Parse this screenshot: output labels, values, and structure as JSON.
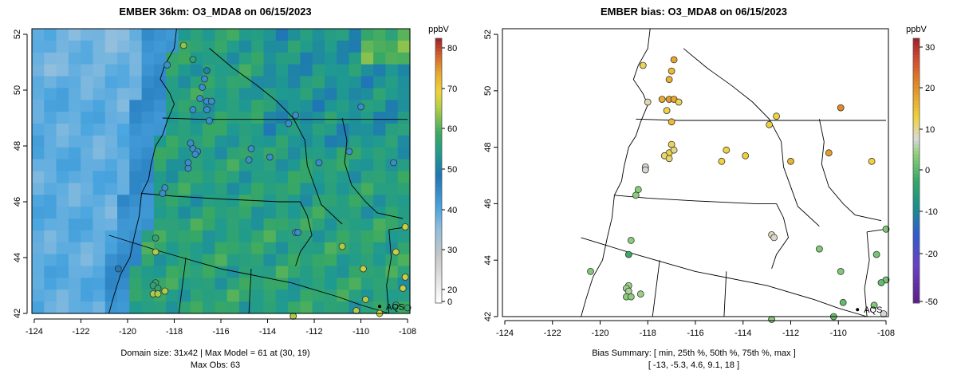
{
  "panels": {
    "left": {
      "title": "EMBER 36km: O3_MDA8 on 06/15/2023",
      "footer_line1": "Domain size: 31x42 | Max Model = 61 at (30, 19)",
      "footer_line2": "Max Obs: 63"
    },
    "right": {
      "title": "EMBER bias: O3_MDA8 on 06/15/2023",
      "footer_line1": "Bias Summary: [ min, 25th %, 50th %, 75th %, max ]",
      "footer_line2": "[ -13,   -5.3,   4.6,   9.1,   18 ]"
    }
  },
  "site_label": "AQS",
  "chart_data": [
    {
      "type": "heatmap",
      "panel": "left",
      "title": "EMBER 36km: O3_MDA8 on 06/15/2023",
      "x_ticks": [
        "-124",
        "-122",
        "-120",
        "-118",
        "-116",
        "-114",
        "-112",
        "-110",
        "-108"
      ],
      "y_ticks": [
        "42",
        "44",
        "46",
        "48",
        "50",
        "52"
      ],
      "xlim": [
        -124.1,
        -107.9
      ],
      "ylim": [
        42,
        52.2
      ],
      "grid": "model grid ocean ~25-32 ppbV, land ~44-55 ppbV, max 61",
      "colorbar": {
        "unit": "ppbV",
        "ticks": [
          "0",
          "20",
          "30",
          "40",
          "50",
          "60",
          "70",
          "80"
        ],
        "range": [
          0,
          82
        ]
      },
      "observations_ppbv": [
        {
          "lon": -118.3,
          "lat": 50.9,
          "value": 34
        },
        {
          "lon": -117.6,
          "lat": 51.6,
          "value": 58
        },
        {
          "lon": -117.2,
          "lat": 51.1,
          "value": 50
        },
        {
          "lon": -116.6,
          "lat": 50.7,
          "value": 42
        },
        {
          "lon": -116.7,
          "lat": 50.4,
          "value": 34
        },
        {
          "lon": -116.8,
          "lat": 50.1,
          "value": 34
        },
        {
          "lon": -116.9,
          "lat": 49.7,
          "value": 34
        },
        {
          "lon": -116.6,
          "lat": 49.6,
          "value": 34
        },
        {
          "lon": -116.4,
          "lat": 49.6,
          "value": 34
        },
        {
          "lon": -116.6,
          "lat": 49.3,
          "value": 34
        },
        {
          "lon": -116.5,
          "lat": 48.9,
          "value": 34
        },
        {
          "lon": -117.2,
          "lat": 49.3,
          "value": 34
        },
        {
          "lon": -117.3,
          "lat": 48.1,
          "value": 34
        },
        {
          "lon": -117.2,
          "lat": 47.9,
          "value": 34
        },
        {
          "lon": -117.0,
          "lat": 47.8,
          "value": 34
        },
        {
          "lon": -117.1,
          "lat": 47.7,
          "value": 34
        },
        {
          "lon": -117.4,
          "lat": 47.2,
          "value": 34
        },
        {
          "lon": -117.4,
          "lat": 47.4,
          "value": 34
        },
        {
          "lon": -118.4,
          "lat": 46.5,
          "value": 34
        },
        {
          "lon": -118.5,
          "lat": 46.3,
          "value": 34
        },
        {
          "lon": -114.7,
          "lat": 47.9,
          "value": 34
        },
        {
          "lon": -114.8,
          "lat": 47.5,
          "value": 34
        },
        {
          "lon": -113.9,
          "lat": 47.6,
          "value": 34
        },
        {
          "lon": -113.1,
          "lat": 48.8,
          "value": 34
        },
        {
          "lon": -112.8,
          "lat": 49.1,
          "value": 34
        },
        {
          "lon": -111.8,
          "lat": 47.4,
          "value": 34
        },
        {
          "lon": -110.0,
          "lat": 49.4,
          "value": 34
        },
        {
          "lon": -110.5,
          "lat": 47.8,
          "value": 34
        },
        {
          "lon": -108.6,
          "lat": 47.4,
          "value": 34
        },
        {
          "lon": -112.8,
          "lat": 44.9,
          "value": 34
        },
        {
          "lon": -112.7,
          "lat": 44.9,
          "value": 34
        },
        {
          "lon": -110.8,
          "lat": 44.4,
          "value": 60
        },
        {
          "lon": -109.9,
          "lat": 43.6,
          "value": 62
        },
        {
          "lon": -108.5,
          "lat": 44.2,
          "value": 62
        },
        {
          "lon": -108.1,
          "lat": 45.1,
          "value": 62
        },
        {
          "lon": -108.1,
          "lat": 43.3,
          "value": 62
        },
        {
          "lon": -108.2,
          "lat": 42.9,
          "value": 62
        },
        {
          "lon": -109.8,
          "lat": 42.5,
          "value": 60
        },
        {
          "lon": -110.2,
          "lat": 42.1,
          "value": 60
        },
        {
          "lon": -112.9,
          "lat": 41.9,
          "value": 60
        },
        {
          "lon": -109.2,
          "lat": 42.0,
          "value": 63
        },
        {
          "lon": -108.5,
          "lat": 42.3,
          "value": 50
        },
        {
          "lon": -108.0,
          "lat": 42.2,
          "value": 50
        },
        {
          "lon": -118.8,
          "lat": 44.7,
          "value": 50
        },
        {
          "lon": -118.8,
          "lat": 44.2,
          "value": 60
        },
        {
          "lon": -120.4,
          "lat": 43.6,
          "value": 40
        },
        {
          "lon": -118.8,
          "lat": 43.1,
          "value": 50
        },
        {
          "lon": -118.9,
          "lat": 43.0,
          "value": 50
        },
        {
          "lon": -118.7,
          "lat": 42.9,
          "value": 50
        },
        {
          "lon": -118.9,
          "lat": 42.7,
          "value": 60
        },
        {
          "lon": -118.7,
          "lat": 42.7,
          "value": 60
        },
        {
          "lon": -118.4,
          "lat": 42.8,
          "value": 60
        }
      ]
    },
    {
      "type": "scatter",
      "panel": "right",
      "title": "EMBER bias: O3_MDA8 on 06/15/2023",
      "x_ticks": [
        "-124",
        "-122",
        "-120",
        "-118",
        "-116",
        "-114",
        "-112",
        "-110",
        "-108"
      ],
      "y_ticks": [
        "42",
        "44",
        "46",
        "48",
        "50",
        "52"
      ],
      "xlim": [
        -124.1,
        -107.9
      ],
      "ylim": [
        42,
        52.2
      ],
      "colorbar": {
        "unit": "ppbV",
        "ticks": [
          "-50",
          "-20",
          "-10",
          "0",
          "10",
          "20",
          "30"
        ],
        "range": [
          -53,
          33
        ]
      },
      "summary": {
        "min": -13,
        "p25": -5.3,
        "p50": 4.6,
        "p75": 9.1,
        "max": 18
      },
      "bias_ppbv": [
        {
          "lon": -118.2,
          "lat": 50.9,
          "value": 6
        },
        {
          "lon": -116.9,
          "lat": 51.1,
          "value": 14
        },
        {
          "lon": -117.0,
          "lat": 50.7,
          "value": 11
        },
        {
          "lon": -117.1,
          "lat": 50.4,
          "value": 12
        },
        {
          "lon": -117.1,
          "lat": 49.7,
          "value": 15
        },
        {
          "lon": -116.9,
          "lat": 49.7,
          "value": 14
        },
        {
          "lon": -116.7,
          "lat": 49.6,
          "value": 6
        },
        {
          "lon": -117.4,
          "lat": 49.7,
          "value": 13
        },
        {
          "lon": -118.0,
          "lat": 49.6,
          "value": 2
        },
        {
          "lon": -117.2,
          "lat": 49.3,
          "value": 7
        },
        {
          "lon": -117.0,
          "lat": 48.9,
          "value": 11
        },
        {
          "lon": -117.0,
          "lat": 48.1,
          "value": 6
        },
        {
          "lon": -117.1,
          "lat": 47.8,
          "value": 7
        },
        {
          "lon": -117.3,
          "lat": 47.7,
          "value": 5
        },
        {
          "lon": -116.9,
          "lat": 47.9,
          "value": 4
        },
        {
          "lon": -117.1,
          "lat": 47.6,
          "value": 5
        },
        {
          "lon": -118.1,
          "lat": 47.3,
          "value": 1
        },
        {
          "lon": -118.1,
          "lat": 47.2,
          "value": 0
        },
        {
          "lon": -118.4,
          "lat": 46.5,
          "value": -5
        },
        {
          "lon": -118.5,
          "lat": 46.3,
          "value": -5
        },
        {
          "lon": -114.7,
          "lat": 47.9,
          "value": 7
        },
        {
          "lon": -114.9,
          "lat": 47.5,
          "value": 7
        },
        {
          "lon": -113.9,
          "lat": 47.7,
          "value": 8
        },
        {
          "lon": -112.9,
          "lat": 48.8,
          "value": 8
        },
        {
          "lon": -112.6,
          "lat": 49.1,
          "value": 7
        },
        {
          "lon": -112.0,
          "lat": 47.5,
          "value": 12
        },
        {
          "lon": -109.9,
          "lat": 49.4,
          "value": 18
        },
        {
          "lon": -110.4,
          "lat": 47.8,
          "value": 15
        },
        {
          "lon": -108.6,
          "lat": 47.5,
          "value": 7
        },
        {
          "lon": -112.8,
          "lat": 44.9,
          "value": 2
        },
        {
          "lon": -112.7,
          "lat": 44.8,
          "value": 1
        },
        {
          "lon": -110.8,
          "lat": 44.4,
          "value": -6
        },
        {
          "lon": -109.9,
          "lat": 43.6,
          "value": -6
        },
        {
          "lon": -108.4,
          "lat": 44.2,
          "value": -7
        },
        {
          "lon": -108.0,
          "lat": 45.1,
          "value": -6
        },
        {
          "lon": -108.0,
          "lat": 43.3,
          "value": -7
        },
        {
          "lon": -108.2,
          "lat": 43.2,
          "value": -9
        },
        {
          "lon": -109.8,
          "lat": 42.5,
          "value": -9
        },
        {
          "lon": -110.2,
          "lat": 42.0,
          "value": -8
        },
        {
          "lon": -112.8,
          "lat": 41.9,
          "value": -5
        },
        {
          "lon": -108.5,
          "lat": 42.4,
          "value": -6
        },
        {
          "lon": -108.1,
          "lat": 42.1,
          "value": 0
        },
        {
          "lon": -118.7,
          "lat": 44.7,
          "value": -5
        },
        {
          "lon": -118.8,
          "lat": 44.2,
          "value": -13
        },
        {
          "lon": -120.4,
          "lat": 43.6,
          "value": -6
        },
        {
          "lon": -118.8,
          "lat": 43.1,
          "value": -4
        },
        {
          "lon": -118.9,
          "lat": 43.0,
          "value": -4
        },
        {
          "lon": -118.8,
          "lat": 42.9,
          "value": -3
        },
        {
          "lon": -118.9,
          "lat": 42.7,
          "value": -5
        },
        {
          "lon": -118.7,
          "lat": 42.7,
          "value": -5
        },
        {
          "lon": -118.3,
          "lat": 42.8,
          "value": -4
        }
      ]
    }
  ]
}
